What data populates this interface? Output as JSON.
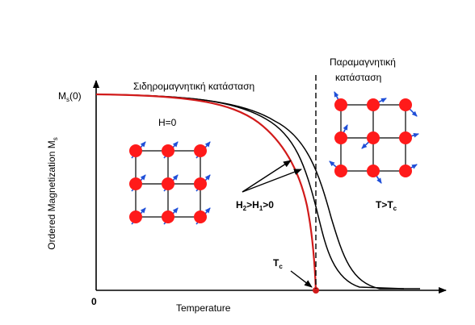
{
  "y_axis": {
    "label_main": "Ordered Magnetization M",
    "label_sub": "s",
    "tick_top_main": "M",
    "tick_top_sub": "s",
    "tick_top_tail": "(0)"
  },
  "x_axis": {
    "label": "Temperature",
    "origin": "0"
  },
  "labels": {
    "ferro_state": "Σιδηρομαγνητική κατάσταση",
    "para_state_line1": "Παραμαγνητική",
    "para_state_line2": "κατάσταση",
    "h_zero": "H=0",
    "h_field_a": "H",
    "h_field_a_sub": "2",
    "h_field_b": ">H",
    "h_field_b_sub": "1",
    "h_field_tail": ">0",
    "tc_main": "T",
    "tc_sub": "c",
    "t_gt_tc_main": "T>T",
    "t_gt_tc_sub": "c"
  },
  "colors": {
    "atom": "#ff1a1a",
    "spin_arrow": "#1f4fd8",
    "curve_zero_field": "#d11a1a",
    "curve_field": "#000000",
    "axis": "#000000"
  },
  "curves": [
    {
      "field": "H=0",
      "color_key": "curve_zero_field"
    },
    {
      "field": "H1",
      "color_key": "curve_field"
    },
    {
      "field": "H2",
      "color_key": "curve_field"
    }
  ],
  "lattices": {
    "ferro": {
      "rows": 3,
      "cols": 3,
      "spin": "aligned"
    },
    "para": {
      "rows": 3,
      "cols": 3,
      "spin": "random"
    }
  }
}
